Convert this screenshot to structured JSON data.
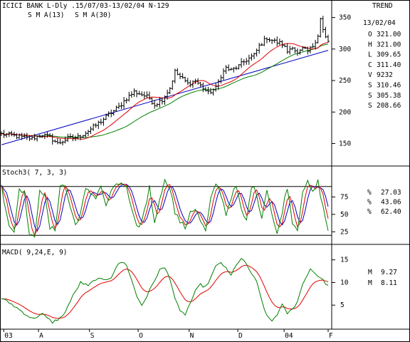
{
  "header": {
    "title": "ICICI BANK L-Dly .15/07/03-13/02/04  N-129",
    "right_label": "TREND"
  },
  "colors": {
    "price": "#000000",
    "sma13": "#e00000",
    "sma30": "#008000",
    "trendline": "#0000c0",
    "stoch_k": "#008000",
    "stoch_d": "#e00000",
    "stoch_dd": "#0000c0",
    "macd": "#008000",
    "signal": "#e00000"
  },
  "chart_data": [
    {
      "type": "line",
      "panel": "price",
      "title": "ICICI BANK L-Dly .15/07/03-13/02/04  N-129",
      "ylim": [
        120,
        362
      ],
      "yticks": [
        150,
        200,
        250,
        300,
        350
      ],
      "date_range": [
        "2003-07-15",
        "2004-02-13"
      ],
      "ohlc": {
        "date": "13/02/04",
        "rows": [
          {
            "key": "O",
            "value": "321.00",
            "color": "#000000"
          },
          {
            "key": "H",
            "value": "321.00",
            "color": "#c08000"
          },
          {
            "key": "L",
            "value": "309.65",
            "color": "#c08000"
          },
          {
            "key": "C",
            "value": "311.40",
            "color": "#c08000"
          },
          {
            "key": "V",
            "value": "9232",
            "color": "#000000"
          },
          {
            "key": "S",
            "value": "310.46",
            "color": "#e00000"
          },
          {
            "key": "S",
            "value": "305.38",
            "color": "#008000"
          },
          {
            "key": "S",
            "value": "208.66",
            "color": "#0000c0"
          }
        ]
      },
      "series": [
        {
          "name": "S M A(13)",
          "color": "#e00000"
        },
        {
          "name": "S M A(30)",
          "color": "#008000"
        }
      ],
      "trendline": [
        [
          0,
          148
        ],
        [
          128,
          298
        ]
      ],
      "close_anchors": [
        [
          0,
          165
        ],
        [
          4,
          163
        ],
        [
          8,
          160
        ],
        [
          12,
          158
        ],
        [
          16,
          164
        ],
        [
          19,
          160
        ],
        [
          22,
          150
        ],
        [
          26,
          158
        ],
        [
          30,
          160
        ],
        [
          34,
          170
        ],
        [
          38,
          182
        ],
        [
          42,
          196
        ],
        [
          46,
          208
        ],
        [
          49,
          222
        ],
        [
          52,
          232
        ],
        [
          55,
          228
        ],
        [
          58,
          222
        ],
        [
          60,
          212
        ],
        [
          63,
          220
        ],
        [
          66,
          238
        ],
        [
          68,
          264
        ],
        [
          70,
          256
        ],
        [
          73,
          245
        ],
        [
          76,
          250
        ],
        [
          79,
          238
        ],
        [
          81,
          230
        ],
        [
          84,
          238
        ],
        [
          86,
          258
        ],
        [
          88,
          270
        ],
        [
          90,
          266
        ],
        [
          93,
          273
        ],
        [
          96,
          283
        ],
        [
          99,
          290
        ],
        [
          101,
          305
        ],
        [
          104,
          318
        ],
        [
          107,
          312
        ],
        [
          110,
          308
        ],
        [
          112,
          296
        ],
        [
          114,
          305
        ],
        [
          116,
          292
        ],
        [
          118,
          300
        ],
        [
          120,
          296
        ],
        [
          122,
          305
        ],
        [
          124,
          322
        ],
        [
          125,
          348
        ],
        [
          126,
          330
        ],
        [
          127,
          318
        ],
        [
          128,
          311
        ]
      ]
    },
    {
      "type": "line",
      "panel": "stochastic",
      "title": "Stoch3( 7, 3, 3)",
      "ylim": [
        10,
        102
      ],
      "yticks": [
        25,
        50,
        75
      ],
      "bands": [
        20,
        90
      ],
      "series": [
        {
          "name": "%",
          "value": "27.03",
          "color": "#008000"
        },
        {
          "name": "%",
          "value": "43.06",
          "color": "#e00000"
        },
        {
          "name": "%",
          "value": "62.40",
          "color": "#0000c0"
        }
      ],
      "k_anchors": [
        [
          0,
          90
        ],
        [
          3,
          35
        ],
        [
          5,
          25
        ],
        [
          7,
          90
        ],
        [
          9,
          80
        ],
        [
          11,
          20
        ],
        [
          13,
          15
        ],
        [
          15,
          88
        ],
        [
          17,
          75
        ],
        [
          19,
          30
        ],
        [
          21,
          28
        ],
        [
          23,
          92
        ],
        [
          25,
          90
        ],
        [
          27,
          60
        ],
        [
          29,
          35
        ],
        [
          31,
          52
        ],
        [
          33,
          85
        ],
        [
          35,
          80
        ],
        [
          37,
          75
        ],
        [
          39,
          92
        ],
        [
          41,
          60
        ],
        [
          43,
          85
        ],
        [
          45,
          90
        ],
        [
          47,
          96
        ],
        [
          49,
          88
        ],
        [
          51,
          55
        ],
        [
          53,
          30
        ],
        [
          55,
          40
        ],
        [
          57,
          70
        ],
        [
          58,
          92
        ],
        [
          60,
          35
        ],
        [
          62,
          75
        ],
        [
          64,
          98
        ],
        [
          66,
          90
        ],
        [
          68,
          52
        ],
        [
          70,
          40
        ],
        [
          72,
          30
        ],
        [
          74,
          55
        ],
        [
          76,
          58
        ],
        [
          78,
          40
        ],
        [
          80,
          25
        ],
        [
          82,
          70
        ],
        [
          84,
          95
        ],
        [
          86,
          80
        ],
        [
          88,
          50
        ],
        [
          90,
          75
        ],
        [
          92,
          90
        ],
        [
          94,
          55
        ],
        [
          96,
          40
        ],
        [
          98,
          92
        ],
        [
          100,
          80
        ],
        [
          102,
          45
        ],
        [
          104,
          88
        ],
        [
          106,
          50
        ],
        [
          108,
          20
        ],
        [
          110,
          55
        ],
        [
          112,
          90
        ],
        [
          114,
          40
        ],
        [
          116,
          28
        ],
        [
          118,
          85
        ],
        [
          120,
          95
        ],
        [
          122,
          80
        ],
        [
          124,
          97
        ],
        [
          126,
          60
        ],
        [
          128,
          27
        ]
      ]
    },
    {
      "type": "line",
      "panel": "macd",
      "title": "MACD( 9,24,E, 9)",
      "ylim": [
        0,
        17
      ],
      "yticks": [
        5,
        10,
        15
      ],
      "series": [
        {
          "name": "M",
          "value": "9.27",
          "color": "#008000"
        },
        {
          "name": "M",
          "value": "8.11",
          "color": "#e00000"
        }
      ],
      "macd_anchors": [
        [
          0,
          6.5
        ],
        [
          4,
          5.2
        ],
        [
          8,
          3.6
        ],
        [
          12,
          2.0
        ],
        [
          16,
          3.0
        ],
        [
          20,
          1.2
        ],
        [
          24,
          2.5
        ],
        [
          28,
          7.0
        ],
        [
          31,
          10.0
        ],
        [
          34,
          9.2
        ],
        [
          37,
          10.8
        ],
        [
          40,
          10.5
        ],
        [
          43,
          11.2
        ],
        [
          45,
          13.5
        ],
        [
          47,
          14.5
        ],
        [
          49,
          14.0
        ],
        [
          51,
          10.5
        ],
        [
          53,
          7.0
        ],
        [
          55,
          5.0
        ],
        [
          57,
          7.0
        ],
        [
          60,
          10.5
        ],
        [
          62,
          12.8
        ],
        [
          64,
          13.2
        ],
        [
          66,
          11.0
        ],
        [
          68,
          6.5
        ],
        [
          70,
          3.5
        ],
        [
          72,
          3.0
        ],
        [
          74,
          5.5
        ],
        [
          76,
          8.0
        ],
        [
          78,
          9.5
        ],
        [
          80,
          9.0
        ],
        [
          82,
          11.0
        ],
        [
          84,
          13.5
        ],
        [
          86,
          14.5
        ],
        [
          88,
          13.0
        ],
        [
          90,
          11.5
        ],
        [
          92,
          14.0
        ],
        [
          94,
          15.2
        ],
        [
          96,
          14.0
        ],
        [
          98,
          12.0
        ],
        [
          100,
          10.0
        ],
        [
          102,
          6.0
        ],
        [
          104,
          2.5
        ],
        [
          106,
          1.5
        ],
        [
          108,
          3.0
        ],
        [
          110,
          5.0
        ],
        [
          112,
          3.2
        ],
        [
          114,
          4.0
        ],
        [
          116,
          6.0
        ],
        [
          118,
          9.5
        ],
        [
          120,
          12.0
        ],
        [
          121,
          13.0
        ],
        [
          122,
          12.5
        ],
        [
          125,
          11.0
        ],
        [
          128,
          9.27
        ]
      ]
    }
  ],
  "x_axis": {
    "labels": [
      {
        "label": "03",
        "bar": 1
      },
      {
        "label": "A",
        "bar": 16
      },
      {
        "label": "S",
        "bar": 38
      },
      {
        "label": "O",
        "bar": 59
      },
      {
        "label": "N",
        "bar": 81
      },
      {
        "label": "D",
        "bar": 102
      },
      {
        "label": "04",
        "bar": 122
      },
      {
        "label": "F",
        "bar": 141
      }
    ]
  }
}
